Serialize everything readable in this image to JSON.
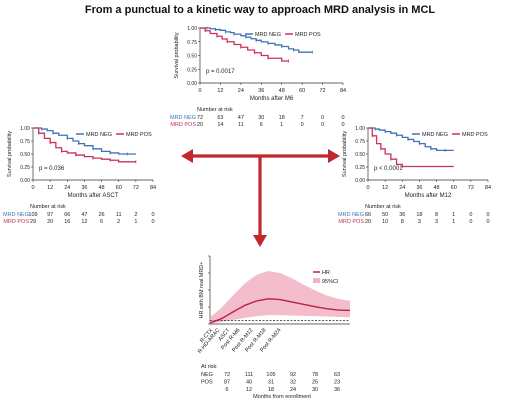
{
  "figure_title": "From a punctual to a kinetic way to approach MRD analysis in MCL",
  "colors": {
    "neg": "#3f73b7",
    "pos": "#c9315f",
    "hr_line": "#c01f45",
    "ci_fill": "#f1b2c2"
  },
  "chart_data": [
    {
      "id": "km_m6",
      "type": "line",
      "ylabel": "Survival probability",
      "xlabel": "Months after M6",
      "x_ticks": [
        0,
        12,
        24,
        36,
        48,
        60,
        72,
        84
      ],
      "y_ticks": [
        0.0,
        0.25,
        0.5,
        0.75,
        1.0
      ],
      "xlim": [
        0,
        84
      ],
      "ylim": [
        0,
        1
      ],
      "pvalue": "p = 0.0017",
      "legend": [
        "MRD NEG",
        "MRD POS"
      ],
      "series": [
        {
          "name": "MRD NEG",
          "points": [
            [
              0,
              1
            ],
            [
              4,
              1
            ],
            [
              6,
              0.986
            ],
            [
              9,
              0.972
            ],
            [
              12,
              0.958
            ],
            [
              15,
              0.93
            ],
            [
              18,
              0.916
            ],
            [
              20,
              0.888
            ],
            [
              24,
              0.86
            ],
            [
              27,
              0.832
            ],
            [
              30,
              0.804
            ],
            [
              33,
              0.776
            ],
            [
              36,
              0.748
            ],
            [
              40,
              0.72
            ],
            [
              44,
              0.692
            ],
            [
              48,
              0.664
            ],
            [
              52,
              0.62
            ],
            [
              55,
              0.6
            ],
            [
              58,
              0.56
            ],
            [
              66,
              0.56
            ]
          ]
        },
        {
          "name": "MRD POS",
          "points": [
            [
              0,
              1
            ],
            [
              3,
              0.95
            ],
            [
              6,
              0.9
            ],
            [
              10,
              0.85
            ],
            [
              13,
              0.8
            ],
            [
              16,
              0.75
            ],
            [
              20,
              0.7
            ],
            [
              24,
              0.65
            ],
            [
              28,
              0.6
            ],
            [
              32,
              0.55
            ],
            [
              36,
              0.5
            ],
            [
              40,
              0.45
            ],
            [
              48,
              0.4
            ],
            [
              52,
              0.4
            ]
          ]
        }
      ],
      "risk_header": "Number at risk",
      "risk_table": [
        {
          "label": "MRD NEG",
          "values": [
            "72",
            "63",
            "47",
            "30",
            "18",
            "7",
            "0",
            "0"
          ]
        },
        {
          "label": "MRD POS",
          "values": [
            "20",
            "14",
            "11",
            "6",
            "1",
            "0",
            "0",
            "0"
          ]
        }
      ]
    },
    {
      "id": "km_asct",
      "type": "line",
      "ylabel": "Survival probability",
      "xlabel": "Months after ASCT",
      "x_ticks": [
        0,
        12,
        24,
        36,
        48,
        60,
        72,
        84
      ],
      "y_ticks": [
        0.0,
        0.25,
        0.5,
        0.75,
        1.0
      ],
      "xlim": [
        0,
        84
      ],
      "ylim": [
        0,
        1
      ],
      "pvalue": "p = 0.036",
      "legend": [
        "MRD NEG",
        "MRD POS"
      ],
      "series": [
        {
          "name": "MRD NEG",
          "points": [
            [
              0,
              1
            ],
            [
              6,
              0.98
            ],
            [
              10,
              0.95
            ],
            [
              14,
              0.9
            ],
            [
              18,
              0.86
            ],
            [
              24,
              0.8
            ],
            [
              28,
              0.75
            ],
            [
              32,
              0.7
            ],
            [
              36,
              0.66
            ],
            [
              42,
              0.6
            ],
            [
              48,
              0.55
            ],
            [
              54,
              0.52
            ],
            [
              60,
              0.5
            ],
            [
              66,
              0.5
            ],
            [
              72,
              0.5
            ]
          ]
        },
        {
          "name": "MRD POS",
          "points": [
            [
              0,
              1
            ],
            [
              4,
              0.9
            ],
            [
              8,
              0.8
            ],
            [
              12,
              0.72
            ],
            [
              16,
              0.62
            ],
            [
              20,
              0.55
            ],
            [
              24,
              0.52
            ],
            [
              30,
              0.48
            ],
            [
              36,
              0.45
            ],
            [
              42,
              0.42
            ],
            [
              48,
              0.4
            ],
            [
              54,
              0.38
            ],
            [
              60,
              0.35
            ],
            [
              72,
              0.35
            ]
          ]
        }
      ],
      "risk_header": "Number at risk",
      "risk_table": [
        {
          "label": "MRD NEG",
          "values": [
            "109",
            "97",
            "66",
            "47",
            "26",
            "11",
            "2",
            "0"
          ]
        },
        {
          "label": "MRD POS",
          "values": [
            "29",
            "20",
            "16",
            "12",
            "6",
            "2",
            "1",
            "0"
          ]
        }
      ]
    },
    {
      "id": "km_m12",
      "type": "line",
      "ylabel": "Survival probability",
      "xlabel": "Months after M12",
      "x_ticks": [
        0,
        12,
        24,
        36,
        48,
        60,
        72,
        84
      ],
      "y_ticks": [
        0.0,
        0.25,
        0.5,
        0.75,
        1.0
      ],
      "xlim": [
        0,
        84
      ],
      "ylim": [
        0,
        1
      ],
      "pvalue": "p < 0.0001",
      "legend": [
        "MRD NEG",
        "MRD POS"
      ],
      "series": [
        {
          "name": "MRD NEG",
          "points": [
            [
              0,
              1
            ],
            [
              5,
              0.98
            ],
            [
              8,
              0.96
            ],
            [
              12,
              0.93
            ],
            [
              16,
              0.9
            ],
            [
              20,
              0.86
            ],
            [
              24,
              0.82
            ],
            [
              28,
              0.78
            ],
            [
              32,
              0.74
            ],
            [
              36,
              0.7
            ],
            [
              40,
              0.64
            ],
            [
              44,
              0.6
            ],
            [
              48,
              0.57
            ],
            [
              54,
              0.57
            ],
            [
              60,
              0.57
            ]
          ]
        },
        {
          "name": "MRD POS",
          "points": [
            [
              0,
              1
            ],
            [
              3,
              0.85
            ],
            [
              6,
              0.7
            ],
            [
              9,
              0.6
            ],
            [
              12,
              0.5
            ],
            [
              16,
              0.4
            ],
            [
              20,
              0.3
            ],
            [
              24,
              0.26
            ],
            [
              60,
              0.26
            ]
          ]
        }
      ],
      "risk_header": "Number at risk",
      "risk_table": [
        {
          "label": "MRD NEG",
          "values": [
            "66",
            "50",
            "36",
            "18",
            "8",
            "1",
            "0",
            "0"
          ]
        },
        {
          "label": "MRD POS",
          "values": [
            "20",
            "10",
            "8",
            "3",
            "3",
            "1",
            "0",
            "0"
          ]
        }
      ]
    },
    {
      "id": "hr_curve",
      "type": "area",
      "ylabel": "HR with BM real MRD+",
      "xlabel": "Months from enrollment",
      "y_ticks": [
        0,
        5,
        10,
        15,
        20
      ],
      "ylim": [
        0,
        20
      ],
      "xlim": [
        0,
        36
      ],
      "reference_line": 1,
      "legend": [
        "HR",
        "95%CI"
      ],
      "categories": [
        "R-CTX",
        "R-HD-ARAC",
        "ASCT",
        "Post R-M6",
        "Post R-M12",
        "Post R-M18",
        "Post R-M24"
      ],
      "series": [
        {
          "name": "HR",
          "points": [
            [
              0,
              0.3
            ],
            [
              3,
              1.6
            ],
            [
              6,
              3.6
            ],
            [
              9,
              5.5
            ],
            [
              12,
              6.8
            ],
            [
              15,
              7.4
            ],
            [
              18,
              7.2
            ],
            [
              21,
              6.5
            ],
            [
              24,
              5.8
            ],
            [
              27,
              5.1
            ],
            [
              30,
              4.5
            ],
            [
              33,
              4.1
            ],
            [
              36,
              4.0
            ]
          ]
        },
        {
          "name": "95%CI",
          "upper": [
            [
              0,
              2.0
            ],
            [
              3,
              4.8
            ],
            [
              6,
              8.5
            ],
            [
              9,
              12.0
            ],
            [
              12,
              14.5
            ],
            [
              15,
              15.6
            ],
            [
              18,
              15.0
            ],
            [
              21,
              13.5
            ],
            [
              24,
              11.6
            ],
            [
              27,
              9.9
            ],
            [
              30,
              8.4
            ],
            [
              33,
              7.4
            ],
            [
              36,
              6.8
            ]
          ],
          "lower": [
            [
              0,
              0.1
            ],
            [
              3,
              0.6
            ],
            [
              6,
              1.2
            ],
            [
              9,
              1.8
            ],
            [
              12,
              2.3
            ],
            [
              15,
              2.6
            ],
            [
              18,
              2.6
            ],
            [
              21,
              2.5
            ],
            [
              24,
              2.4
            ],
            [
              27,
              2.3
            ],
            [
              30,
              2.2
            ],
            [
              33,
              2.1
            ],
            [
              36,
              2.0
            ]
          ]
        }
      ],
      "risk_header": "At risk:",
      "risk_table": [
        {
          "label": "NEG",
          "values": [
            "72",
            "111",
            "105",
            "92",
            "78",
            "63"
          ]
        },
        {
          "label": "POS",
          "values": [
            "87",
            "40",
            "31",
            "32",
            "25",
            "23"
          ]
        },
        {
          "label": "",
          "values": [
            "6",
            "12",
            "18",
            "24",
            "30",
            "36"
          ]
        }
      ]
    }
  ]
}
